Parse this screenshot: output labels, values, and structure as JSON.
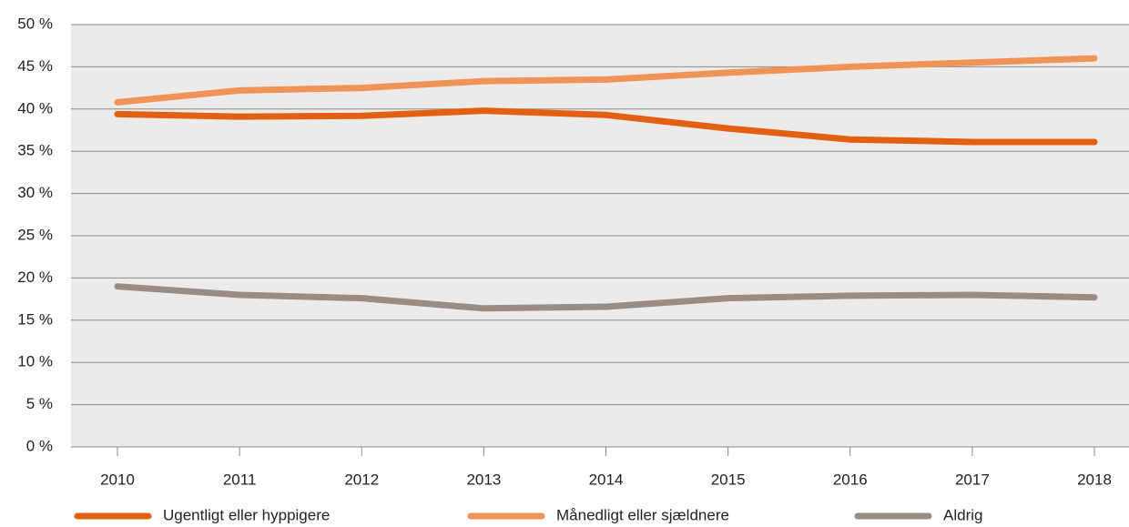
{
  "chart_data": {
    "type": "line",
    "categories": [
      "2010",
      "2011",
      "2012",
      "2013",
      "2014",
      "2015",
      "2016",
      "2017",
      "2018"
    ],
    "series": [
      {
        "name": "Ugentligt eller hyppigere",
        "color": "#e35f12",
        "values": [
          39.4,
          39.1,
          39.2,
          39.8,
          39.3,
          37.7,
          36.4,
          36.1,
          36.1
        ]
      },
      {
        "name": "Månedligt eller sjældnere",
        "color": "#f09356",
        "values": [
          40.8,
          42.2,
          42.5,
          43.3,
          43.5,
          44.3,
          45.0,
          45.5,
          46.0
        ]
      },
      {
        "name": "Aldrig",
        "color": "#9a8b83",
        "values": [
          19.0,
          18.0,
          17.6,
          16.4,
          16.6,
          17.6,
          17.9,
          18.0,
          17.7
        ]
      }
    ],
    "ylim": [
      0,
      50
    ],
    "yticks": [
      {
        "value": 0,
        "label": "0 %"
      },
      {
        "value": 5,
        "label": "5 %"
      },
      {
        "value": 10,
        "label": "10 %"
      },
      {
        "value": 15,
        "label": "15 %"
      },
      {
        "value": 20,
        "label": "20 %"
      },
      {
        "value": 25,
        "label": "25 %"
      },
      {
        "value": 30,
        "label": "30 %"
      },
      {
        "value": 35,
        "label": "35 %"
      },
      {
        "value": 40,
        "label": "40 %"
      },
      {
        "value": 45,
        "label": "45 %"
      },
      {
        "value": 50,
        "label": "50 %"
      }
    ],
    "grid": true,
    "legend": "bottom"
  }
}
